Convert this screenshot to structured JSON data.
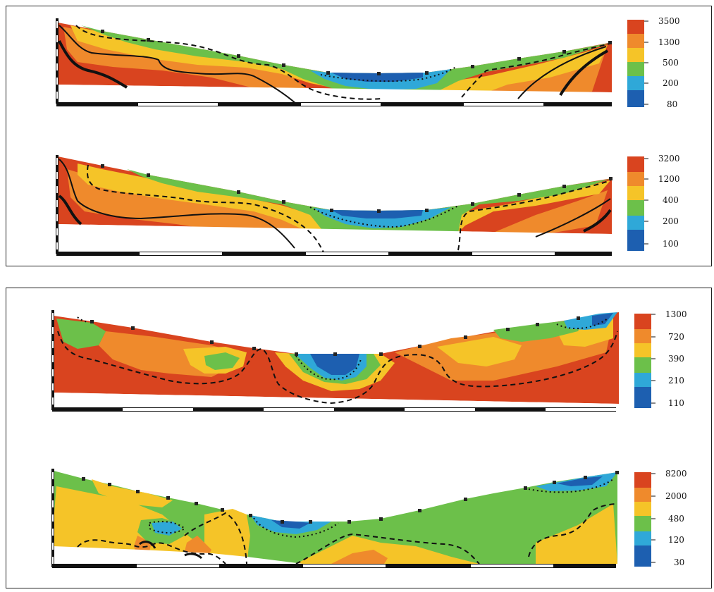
{
  "panels": [
    {
      "id": "a1",
      "legend_ticks": [
        "3500",
        "1300",
        "500",
        "200",
        "80"
      ],
      "colors": [
        "#d9441f",
        "#ef8a2c",
        "#f5c428",
        "#6cc04a",
        "#2fa8d8",
        "#1d5fb0"
      ]
    },
    {
      "id": "a2",
      "legend_ticks": [
        "3200",
        "1200",
        "400",
        "200",
        "100"
      ],
      "colors": [
        "#d9441f",
        "#ef8a2c",
        "#f5c428",
        "#6cc04a",
        "#2fa8d8",
        "#1d5fb0"
      ]
    },
    {
      "id": "b1",
      "legend_ticks": [
        "1300",
        "720",
        "390",
        "210",
        "110"
      ],
      "colors": [
        "#d9441f",
        "#ef8a2c",
        "#f5c428",
        "#6cc04a",
        "#2fa8d8",
        "#1d5fb0"
      ]
    },
    {
      "id": "b2",
      "legend_ticks": [
        "8200",
        "2000",
        "480",
        "120",
        "30"
      ],
      "colors": [
        "#d9441f",
        "#ef8a2c",
        "#f5c428",
        "#6cc04a",
        "#2fa8d8",
        "#1d5fb0"
      ]
    }
  ]
}
